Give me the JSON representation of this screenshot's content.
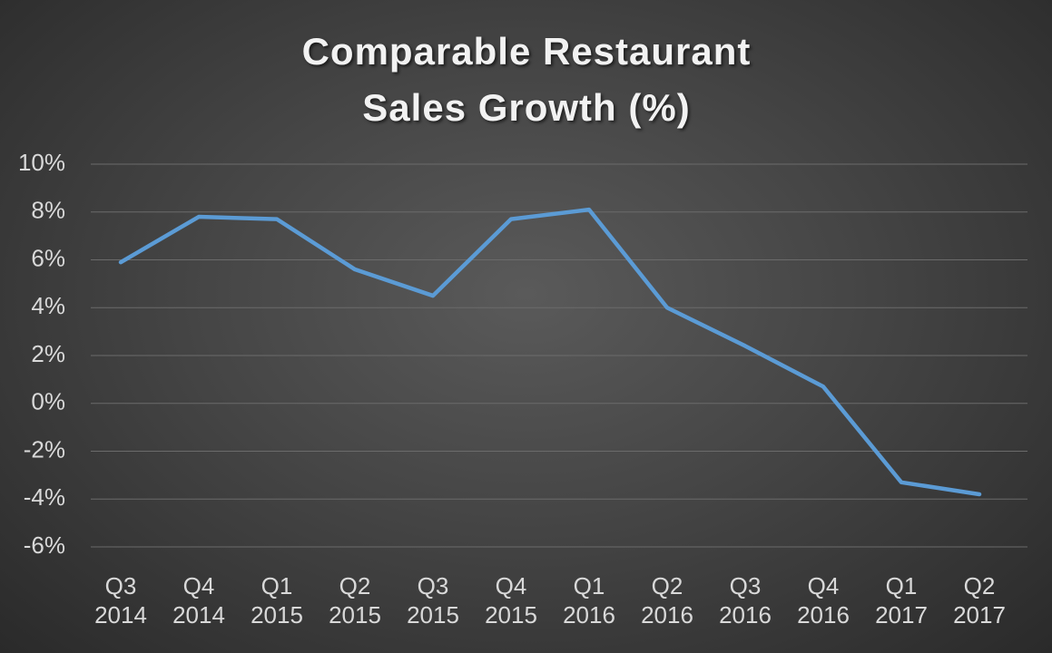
{
  "chart_data": {
    "type": "line",
    "title": "Comparable Restaurant Sales Growth (%)",
    "categories": [
      "Q3 2014",
      "Q4 2014",
      "Q1 2015",
      "Q2 2015",
      "Q3 2015",
      "Q4 2015",
      "Q1 2016",
      "Q2 2016",
      "Q3 2016",
      "Q4 2016",
      "Q1 2017",
      "Q2 2017"
    ],
    "values": [
      5.9,
      7.8,
      7.7,
      5.6,
      4.5,
      7.7,
      8.1,
      4.0,
      2.4,
      0.7,
      -3.3,
      -3.8
    ],
    "color": "#5b9bd5",
    "ylim": [
      -6,
      10
    ],
    "yticks": [
      {
        "value": -6,
        "label": "-6%"
      },
      {
        "value": -4,
        "label": "-4%"
      },
      {
        "value": -2,
        "label": "-2%"
      },
      {
        "value": 0,
        "label": "0%"
      },
      {
        "value": 2,
        "label": "2%"
      },
      {
        "value": 4,
        "label": "4%"
      },
      {
        "value": 6,
        "label": "6%"
      },
      {
        "value": 8,
        "label": "8%"
      },
      {
        "value": 10,
        "label": "10%"
      }
    ],
    "grid": true
  }
}
